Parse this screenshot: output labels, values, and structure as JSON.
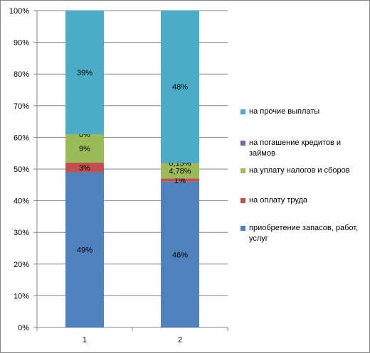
{
  "chart_data": {
    "type": "bar",
    "stacked": true,
    "percent": true,
    "categories": [
      "1",
      "2"
    ],
    "yticks": [
      "0%",
      "10%",
      "20%",
      "30%",
      "40%",
      "50%",
      "60%",
      "70%",
      "80%",
      "90%",
      "100%"
    ],
    "ylim": [
      0,
      100
    ],
    "grid": true,
    "legend_position": "right",
    "series": [
      {
        "name": "приобретение запасов, работ, услуг",
        "color": "#4F81BD",
        "values": [
          49,
          46
        ],
        "labels": [
          "49%",
          "46%"
        ]
      },
      {
        "name": "на оплату труда",
        "color": "#C0504D",
        "values": [
          3,
          1
        ],
        "labels": [
          "3%",
          "1%"
        ]
      },
      {
        "name": "на уплату налогов и сборов",
        "color": "#9BBB59",
        "values": [
          9,
          4.78
        ],
        "labels": [
          "9%",
          "4,78%"
        ]
      },
      {
        "name": "на погашение кредитов и займов",
        "color": "#8064A2",
        "values": [
          0,
          0.15
        ],
        "labels": [
          "0%",
          "0,15%"
        ]
      },
      {
        "name": "на прочие выплаты",
        "color": "#4BACC6",
        "values": [
          39,
          48
        ],
        "labels": [
          "39%",
          "48%"
        ]
      }
    ]
  }
}
